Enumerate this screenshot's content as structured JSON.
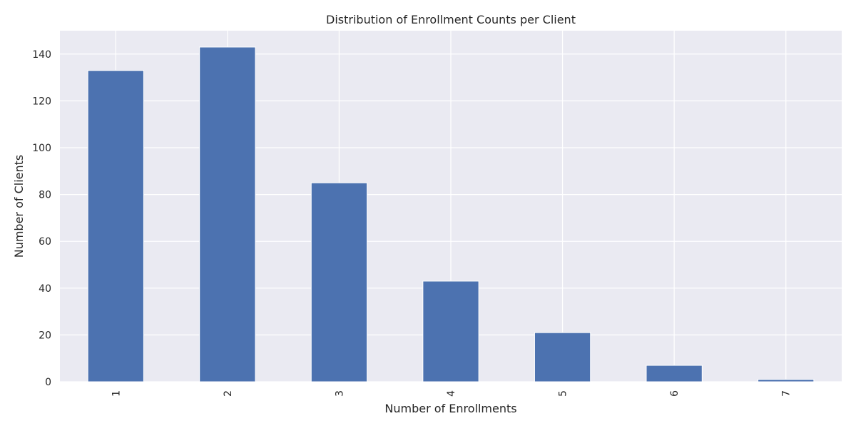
{
  "chart_data": {
    "type": "bar",
    "title": "Distribution of Enrollment Counts per Client",
    "xlabel": "Number of Enrollments",
    "ylabel": "Number of Clients",
    "categories": [
      "1",
      "2",
      "3",
      "4",
      "5",
      "6",
      "7"
    ],
    "values": [
      133,
      143,
      85,
      43,
      21,
      7,
      1
    ],
    "ylim": [
      0,
      150
    ],
    "yticks": [
      0,
      20,
      40,
      60,
      80,
      100,
      120,
      140
    ],
    "grid": true,
    "x_tick_rotation": "vertical",
    "colors": {
      "bar": "#4c72b0",
      "plot_background": "#eaeaf2",
      "grid": "#ffffff",
      "text": "#262626"
    }
  }
}
